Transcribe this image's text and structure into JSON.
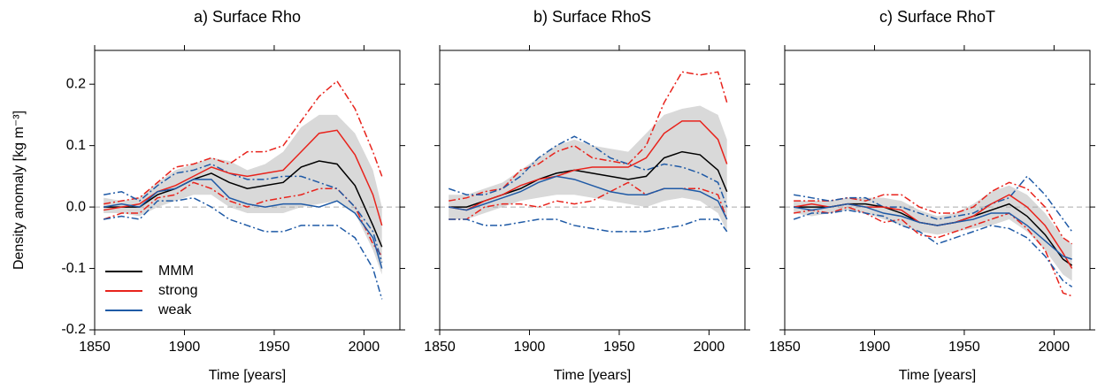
{
  "chart_data": [
    {
      "type": "line",
      "title": "a) Surface Rho",
      "xlabel": "Time [years]",
      "ylabel": "Density anomaly [kg m⁻³]",
      "x": [
        1855,
        1865,
        1875,
        1885,
        1895,
        1905,
        1915,
        1925,
        1935,
        1945,
        1955,
        1965,
        1975,
        1985,
        1995,
        2005,
        2010
      ],
      "xlim": [
        1850,
        2020
      ],
      "xticks": [
        1850,
        1900,
        1950,
        2000
      ],
      "ylim": [
        -0.2,
        0.255
      ],
      "yticks": [
        -0.2,
        -0.1,
        {
          "value": 0,
          "label": "0.0"
        },
        0.1,
        0.2
      ],
      "zero_line": 0,
      "legend": "lower left",
      "band": {
        "color": "#d9d9d9",
        "lower": [
          -0.01,
          -0.01,
          -0.015,
          0.0,
          0.01,
          0.02,
          0.02,
          0.0,
          -0.01,
          -0.01,
          -0.01,
          0.0,
          0.005,
          0.01,
          -0.01,
          -0.07,
          -0.11
        ],
        "upper": [
          0.015,
          0.01,
          0.015,
          0.04,
          0.06,
          0.07,
          0.08,
          0.075,
          0.06,
          0.07,
          0.09,
          0.13,
          0.15,
          0.15,
          0.12,
          0.06,
          0.0
        ]
      },
      "series": [
        {
          "color": "#e8231c",
          "dash": "dashdot",
          "values": [
            0.005,
            0.01,
            0.015,
            0.04,
            0.065,
            0.07,
            0.08,
            0.07,
            0.09,
            0.09,
            0.1,
            0.14,
            0.18,
            0.205,
            0.16,
            0.09,
            0.05
          ]
        },
        {
          "color": "#e8231c",
          "dash": "dashdot",
          "values": [
            -0.02,
            -0.01,
            -0.01,
            0.015,
            0.02,
            0.04,
            0.03,
            0.01,
            0.0,
            0.01,
            0.015,
            0.02,
            0.03,
            0.03,
            0.0,
            -0.06,
            -0.08
          ]
        },
        {
          "color": "#1f5aa6",
          "dash": "dashdot",
          "values": [
            0.02,
            0.025,
            0.01,
            0.035,
            0.055,
            0.06,
            0.07,
            0.055,
            0.045,
            0.045,
            0.05,
            0.05,
            0.04,
            0.03,
            0.0,
            -0.04,
            -0.09
          ]
        },
        {
          "color": "#1f5aa6",
          "dash": "dashdot",
          "values": [
            -0.02,
            -0.015,
            -0.02,
            0.01,
            0.01,
            0.015,
            0.0,
            -0.02,
            -0.03,
            -0.04,
            -0.04,
            -0.03,
            -0.03,
            -0.03,
            -0.05,
            -0.1,
            -0.15
          ]
        },
        {
          "name": "MMM",
          "color": "#000000",
          "values": [
            0.0,
            0.0,
            0.0,
            0.02,
            0.03,
            0.045,
            0.055,
            0.04,
            0.03,
            0.035,
            0.04,
            0.065,
            0.075,
            0.07,
            0.035,
            -0.03,
            -0.065
          ]
        },
        {
          "name": "strong",
          "color": "#e8231c",
          "values": [
            -0.005,
            0.0,
            0.005,
            0.025,
            0.035,
            0.05,
            0.065,
            0.055,
            0.05,
            0.055,
            0.06,
            0.09,
            0.12,
            0.125,
            0.085,
            0.02,
            -0.03
          ]
        },
        {
          "name": "weak",
          "color": "#1f5aa6",
          "values": [
            0.0,
            0.005,
            0.0,
            0.025,
            0.03,
            0.045,
            0.045,
            0.015,
            0.005,
            0.0,
            0.005,
            0.005,
            0.0,
            0.01,
            -0.01,
            -0.05,
            -0.1
          ]
        }
      ]
    },
    {
      "type": "line",
      "title": "b) Surface RhoS",
      "xlabel": "Time [years]",
      "x": [
        1855,
        1865,
        1875,
        1885,
        1895,
        1905,
        1915,
        1925,
        1935,
        1945,
        1955,
        1965,
        1975,
        1985,
        1995,
        2005,
        2010
      ],
      "xlim": [
        1850,
        2020
      ],
      "xticks": [
        1850,
        1900,
        1950,
        2000
      ],
      "ylim": [
        -0.2,
        0.255
      ],
      "yticks": [
        -0.2,
        -0.1,
        0,
        0.1,
        0.2
      ],
      "ytick_labels": false,
      "zero_line": 0,
      "band": {
        "color": "#d9d9d9",
        "lower": [
          -0.02,
          -0.02,
          -0.01,
          0.0,
          0.01,
          0.015,
          0.02,
          0.02,
          0.015,
          0.01,
          0.005,
          0.0,
          0.01,
          0.015,
          0.01,
          -0.01,
          -0.04
        ],
        "upper": [
          0.02,
          0.02,
          0.03,
          0.04,
          0.06,
          0.08,
          0.1,
          0.11,
          0.1,
          0.095,
          0.09,
          0.12,
          0.15,
          0.16,
          0.165,
          0.15,
          0.11
        ]
      },
      "series": [
        {
          "color": "#e8231c",
          "dash": "dashdot",
          "values": [
            0.01,
            0.015,
            0.025,
            0.03,
            0.06,
            0.07,
            0.09,
            0.1,
            0.08,
            0.075,
            0.07,
            0.1,
            0.17,
            0.22,
            0.215,
            0.22,
            0.17
          ]
        },
        {
          "color": "#e8231c",
          "dash": "dashdot",
          "values": [
            -0.02,
            -0.02,
            0.0,
            0.005,
            0.005,
            0.0,
            0.01,
            0.005,
            0.01,
            0.025,
            0.04,
            0.02,
            0.03,
            0.03,
            0.03,
            0.02,
            -0.02
          ]
        },
        {
          "color": "#1f5aa6",
          "dash": "dashdot",
          "values": [
            0.03,
            0.02,
            0.02,
            0.03,
            0.05,
            0.08,
            0.1,
            0.115,
            0.1,
            0.08,
            0.07,
            0.06,
            0.07,
            0.065,
            0.055,
            0.04,
            0.0
          ]
        },
        {
          "color": "#1f5aa6",
          "dash": "dashdot",
          "values": [
            -0.02,
            -0.02,
            -0.03,
            -0.03,
            -0.025,
            -0.02,
            -0.02,
            -0.03,
            -0.035,
            -0.04,
            -0.04,
            -0.04,
            -0.035,
            -0.03,
            -0.02,
            -0.02,
            -0.04
          ]
        },
        {
          "color": "#000000",
          "values": [
            0.0,
            0.0,
            0.01,
            0.02,
            0.03,
            0.045,
            0.055,
            0.06,
            0.055,
            0.05,
            0.045,
            0.05,
            0.08,
            0.09,
            0.085,
            0.06,
            0.025
          ]
        },
        {
          "color": "#e8231c",
          "values": [
            0.0,
            -0.005,
            0.01,
            0.02,
            0.035,
            0.045,
            0.05,
            0.06,
            0.065,
            0.065,
            0.065,
            0.08,
            0.12,
            0.14,
            0.14,
            0.11,
            0.07
          ]
        },
        {
          "color": "#1f5aa6",
          "values": [
            0.0,
            -0.005,
            0.005,
            0.015,
            0.025,
            0.04,
            0.05,
            0.045,
            0.035,
            0.025,
            0.02,
            0.02,
            0.03,
            0.03,
            0.025,
            0.01,
            -0.02
          ]
        }
      ]
    },
    {
      "type": "line",
      "title": "c) Surface RhoT",
      "xlabel": "Time [years]",
      "x": [
        1855,
        1865,
        1875,
        1885,
        1895,
        1905,
        1915,
        1925,
        1935,
        1945,
        1955,
        1965,
        1975,
        1985,
        1995,
        2005,
        2010
      ],
      "xlim": [
        1850,
        2020
      ],
      "xticks": [
        1850,
        1900,
        1950,
        2000
      ],
      "ylim": [
        -0.2,
        0.255
      ],
      "yticks": [
        -0.2,
        -0.1,
        0,
        0.1,
        0.2
      ],
      "ytick_labels": false,
      "zero_line": 0,
      "band": {
        "color": "#d9d9d9",
        "lower": [
          -0.01,
          -0.015,
          -0.01,
          -0.005,
          -0.01,
          -0.02,
          -0.03,
          -0.04,
          -0.045,
          -0.04,
          -0.035,
          -0.03,
          -0.02,
          -0.04,
          -0.07,
          -0.11,
          -0.12
        ],
        "upper": [
          0.01,
          0.01,
          0.01,
          0.015,
          0.015,
          0.015,
          0.01,
          -0.005,
          -0.015,
          -0.01,
          0.005,
          0.025,
          0.035,
          0.02,
          -0.01,
          -0.05,
          -0.06
        ]
      },
      "series": [
        {
          "color": "#e8231c",
          "dash": "dashdot",
          "values": [
            0.01,
            0.01,
            0.01,
            0.015,
            0.01,
            0.02,
            0.02,
            0.0,
            -0.01,
            -0.01,
            0.0,
            0.025,
            0.04,
            0.03,
            0.0,
            -0.05,
            -0.06
          ]
        },
        {
          "color": "#e8231c",
          "dash": "dashdot",
          "values": [
            -0.01,
            -0.005,
            -0.01,
            0.0,
            -0.01,
            -0.025,
            -0.02,
            -0.045,
            -0.05,
            -0.04,
            -0.03,
            -0.02,
            -0.01,
            -0.035,
            -0.07,
            -0.14,
            -0.145
          ]
        },
        {
          "color": "#1f5aa6",
          "dash": "dashdot",
          "values": [
            0.02,
            0.015,
            0.01,
            0.015,
            0.015,
            0.0,
            0.0,
            -0.01,
            -0.02,
            -0.015,
            -0.01,
            0.005,
            0.015,
            0.05,
            0.02,
            -0.02,
            -0.04
          ]
        },
        {
          "color": "#1f5aa6",
          "dash": "dashdot",
          "values": [
            -0.02,
            -0.01,
            -0.01,
            -0.005,
            -0.01,
            -0.015,
            -0.03,
            -0.04,
            -0.06,
            -0.05,
            -0.04,
            -0.03,
            -0.035,
            -0.05,
            -0.08,
            -0.12,
            -0.13
          ]
        },
        {
          "color": "#000000",
          "values": [
            0.0,
            0.0,
            0.0,
            0.005,
            0.005,
            0.0,
            -0.01,
            -0.025,
            -0.03,
            -0.025,
            -0.015,
            -0.005,
            0.005,
            -0.015,
            -0.045,
            -0.085,
            -0.095
          ]
        },
        {
          "color": "#e8231c",
          "values": [
            0.0,
            0.005,
            0.0,
            0.005,
            0.0,
            0.0,
            -0.005,
            -0.025,
            -0.03,
            -0.025,
            -0.015,
            0.005,
            0.02,
            0.0,
            -0.03,
            -0.075,
            -0.1
          ]
        },
        {
          "color": "#1f5aa6",
          "values": [
            0.0,
            -0.005,
            0.0,
            0.005,
            0.0,
            -0.01,
            -0.015,
            -0.025,
            -0.03,
            -0.025,
            -0.02,
            -0.01,
            -0.01,
            -0.03,
            -0.055,
            -0.08,
            -0.085
          ]
        }
      ]
    }
  ]
}
